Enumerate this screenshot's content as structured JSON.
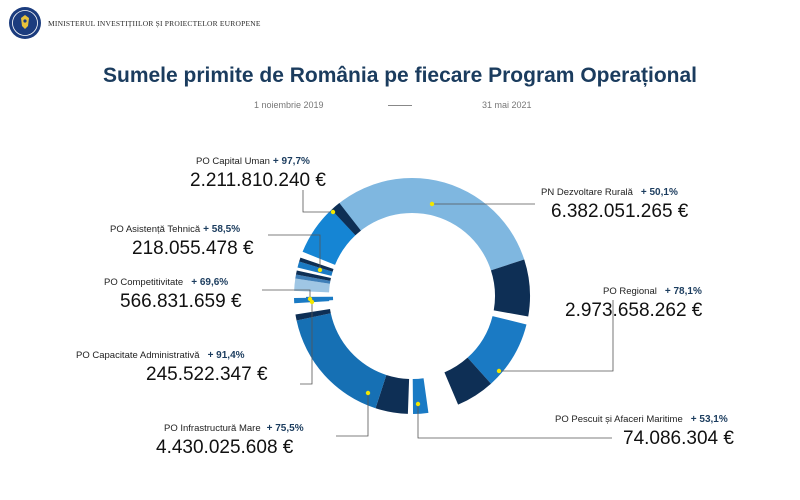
{
  "header": {
    "ministry": "MINISTERUL INVESTIȚIILOR ȘI PROIECTELOR EUROPENE",
    "logo_text": "GUVERNUL ROMÂNIEI"
  },
  "title": "Sumele primite de România pe fiecare Program Operațional",
  "period": {
    "start": "1 noiembrie 2019",
    "end": "31 mai 2021"
  },
  "colors": {
    "title": "#1b3c5e",
    "dark_navy": "#0e2f55",
    "light_blue": "#7fb7e0",
    "mid_blue": "#1a7ac4",
    "leader": "#555555",
    "dot": "#f2e600"
  },
  "chart_data": {
    "type": "pie",
    "variant": "donut",
    "title": "Sumele primite de România pe fiecare Program Operațional",
    "unit": "€",
    "series": [
      {
        "name": "PN Dezvoltare Rurală",
        "amount": "6.382.051.265 €",
        "value": 6382051265,
        "percent": "+ 50,1%"
      },
      {
        "name": "PO Regional",
        "amount": "2.973.658.262 €",
        "value": 2973658262,
        "percent": "+ 78,1%"
      },
      {
        "name": "PO Pescuit și Afaceri Maritime",
        "amount": "74.086.304 €",
        "value": 74086304,
        "percent": "+ 53,1%"
      },
      {
        "name": "PO Infrastructură Mare",
        "amount": "4.430.025.608 €",
        "value": 4430025608,
        "percent": "+ 75,5%"
      },
      {
        "name": "PO Capacitate Administrativă",
        "amount": "245.522.347 €",
        "value": 245522347,
        "percent": "+ 91,4%"
      },
      {
        "name": "PO Competitivitate",
        "amount": "566.831.659 €",
        "value": 566831659,
        "percent": "+ 69,6%"
      },
      {
        "name": "PO Asistență Tehnică",
        "amount": "218.055.478 €",
        "value": 218055478,
        "percent": "+ 58,5%"
      },
      {
        "name": "PO Capital Uman",
        "amount": "2.211.810.240 €",
        "value": 2211810240,
        "percent": "+ 97,7%"
      }
    ]
  }
}
